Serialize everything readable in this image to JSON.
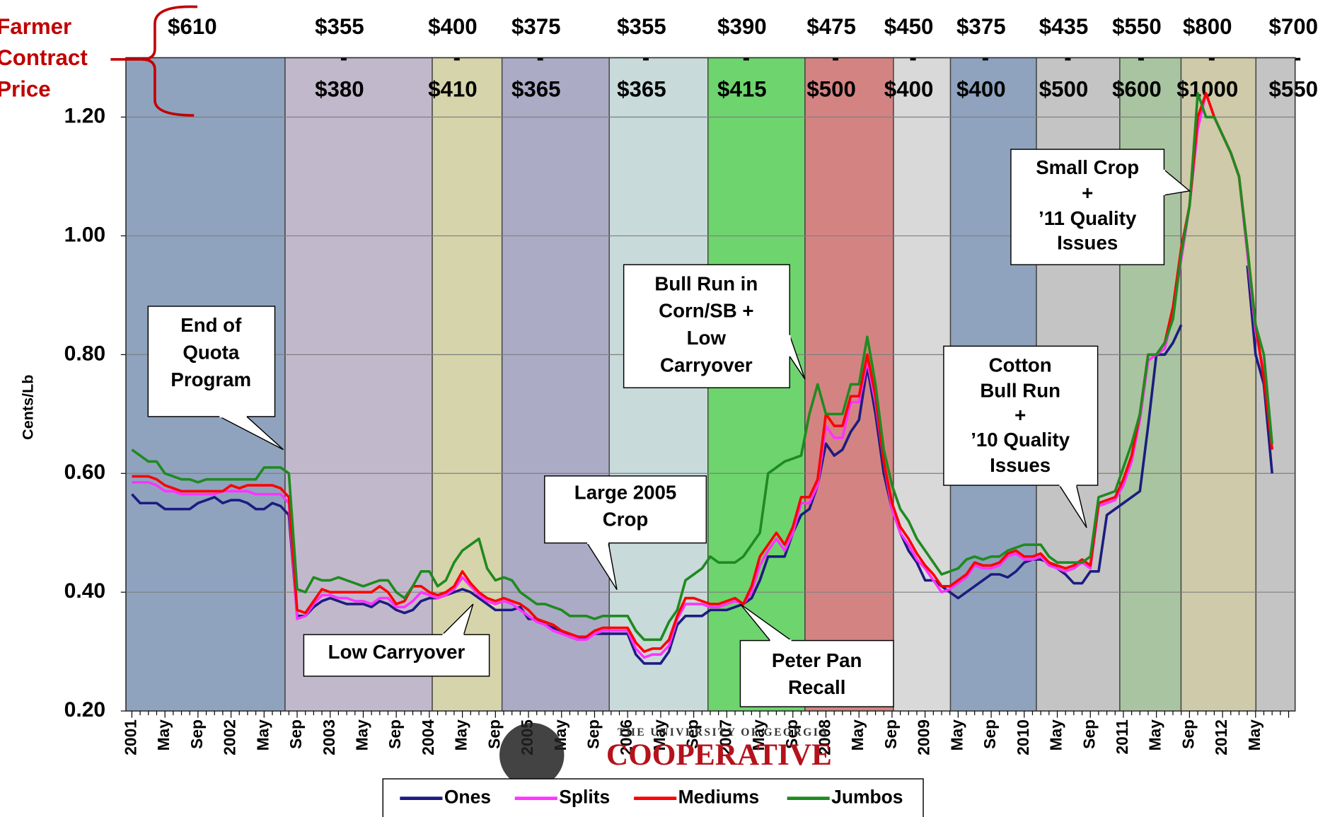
{
  "chart_data": {
    "type": "line",
    "y_label": "Cents/Lb",
    "side_label": [
      "Farmer",
      "Contract",
      "Price"
    ],
    "categories": [
      "2001",
      null,
      null,
      null,
      "May",
      null,
      null,
      null,
      "Sep",
      null,
      null,
      null,
      "2002",
      null,
      null,
      null,
      "May",
      null,
      null,
      null,
      "Sep",
      null,
      null,
      null,
      "2003",
      null,
      null,
      null,
      "May",
      null,
      null,
      null,
      "Sep",
      null,
      null,
      null,
      "2004",
      null,
      null,
      null,
      "May",
      null,
      null,
      null,
      "Sep",
      null,
      null,
      null,
      "2005",
      null,
      null,
      null,
      "May",
      null,
      null,
      null,
      "Sep",
      null,
      null,
      null,
      "2006",
      null,
      null,
      null,
      "May",
      null,
      null,
      null,
      "Sep",
      null,
      null,
      null,
      "2007",
      null,
      null,
      null,
      "May",
      null,
      null,
      null,
      "Sep",
      null,
      null,
      null,
      "2008",
      null,
      null,
      null,
      "May",
      null,
      null,
      null,
      "Sep",
      null,
      null,
      null,
      "2009",
      null,
      null,
      null,
      "May",
      null,
      null,
      null,
      "Sep",
      null,
      null,
      null,
      "2010",
      null,
      null,
      null,
      "May",
      null,
      null,
      null,
      "Sep",
      null,
      null,
      null,
      "2011",
      null,
      null,
      null,
      "May",
      null,
      null,
      null,
      "Sep",
      null,
      null,
      null,
      "2012",
      null,
      null,
      null,
      "May",
      null,
      null,
      null,
      null
    ],
    "series": [
      {
        "name": "Ones",
        "color": "#1c1c80",
        "values": [
          0.565,
          0.55,
          0.55,
          0.55,
          0.54,
          0.54,
          0.54,
          0.54,
          0.55,
          0.555,
          0.56,
          0.55,
          0.555,
          0.555,
          0.55,
          0.54,
          0.54,
          0.55,
          0.545,
          0.53,
          0.36,
          0.36,
          0.375,
          0.385,
          0.39,
          0.385,
          0.38,
          0.38,
          0.38,
          0.375,
          0.385,
          0.38,
          0.37,
          0.365,
          0.37,
          0.385,
          0.39,
          0.39,
          0.395,
          0.4,
          0.405,
          0.4,
          0.39,
          0.38,
          0.37,
          0.37,
          0.37,
          0.375,
          0.355,
          0.355,
          0.345,
          0.34,
          0.335,
          0.325,
          0.32,
          0.325,
          0.33,
          0.33,
          0.33,
          0.33,
          0.33,
          0.295,
          0.28,
          0.28,
          0.28,
          0.3,
          0.345,
          0.36,
          0.36,
          0.36,
          0.37,
          0.37,
          0.37,
          0.375,
          0.38,
          0.39,
          0.42,
          0.46,
          0.46,
          0.46,
          0.5,
          0.53,
          0.54,
          0.58,
          0.65,
          0.63,
          0.64,
          0.67,
          0.69,
          0.78,
          0.7,
          0.6,
          0.54,
          0.5,
          0.47,
          0.45,
          0.42,
          0.42,
          0.41,
          0.4,
          0.39,
          0.4,
          0.41,
          0.42,
          0.43,
          0.43,
          0.425,
          0.435,
          0.45,
          0.455,
          0.455,
          0.45,
          0.44,
          0.43,
          0.415,
          0.415,
          0.435,
          0.435,
          0.53,
          0.54,
          0.55,
          0.56,
          0.57,
          0.68,
          0.8,
          0.8,
          0.82,
          0.85,
          null,
          null,
          null,
          null,
          null,
          null,
          null,
          0.95,
          0.8,
          0.75,
          0.6,
          null,
          null
        ]
      },
      {
        "name": "Splits",
        "color": "#ff33ff",
        "values": [
          0.585,
          0.585,
          0.585,
          0.58,
          0.57,
          0.57,
          0.565,
          0.565,
          0.565,
          0.565,
          0.565,
          0.57,
          0.57,
          0.57,
          0.57,
          0.565,
          0.565,
          0.565,
          0.565,
          0.55,
          0.355,
          0.36,
          0.38,
          0.395,
          0.395,
          0.39,
          0.39,
          0.385,
          0.385,
          0.38,
          0.39,
          0.39,
          0.375,
          0.375,
          0.385,
          0.4,
          0.395,
          0.39,
          0.395,
          0.405,
          0.425,
          0.41,
          0.395,
          0.385,
          0.38,
          0.385,
          0.38,
          0.37,
          0.36,
          0.35,
          0.345,
          0.335,
          0.33,
          0.325,
          0.32,
          0.32,
          0.33,
          0.335,
          0.335,
          0.335,
          0.335,
          0.305,
          0.29,
          0.295,
          0.295,
          0.31,
          0.355,
          0.38,
          0.38,
          0.38,
          0.375,
          0.375,
          0.38,
          0.385,
          0.38,
          0.4,
          0.445,
          0.47,
          0.49,
          0.47,
          0.5,
          0.55,
          0.55,
          0.58,
          0.68,
          0.66,
          0.66,
          0.72,
          0.72,
          0.79,
          0.72,
          0.62,
          0.54,
          0.5,
          0.48,
          0.455,
          0.44,
          0.42,
          0.4,
          0.405,
          0.415,
          0.425,
          0.445,
          0.44,
          0.44,
          0.445,
          0.46,
          0.465,
          0.455,
          0.455,
          0.46,
          0.445,
          0.44,
          0.435,
          0.44,
          0.45,
          0.44,
          0.545,
          0.55,
          0.555,
          0.58,
          0.62,
          0.69,
          0.79,
          0.8,
          0.81,
          0.87,
          0.96,
          1.05,
          1.18,
          1.24,
          1.2,
          1.17,
          1.14,
          1.1,
          0.97,
          0.84,
          0.77,
          0.64,
          null,
          null
        ]
      },
      {
        "name": "Mediums",
        "color": "#ff0000",
        "values": [
          0.595,
          0.595,
          0.595,
          0.59,
          0.58,
          0.575,
          0.57,
          0.57,
          0.57,
          0.57,
          0.57,
          0.57,
          0.58,
          0.575,
          0.58,
          0.58,
          0.58,
          0.58,
          0.575,
          0.56,
          0.37,
          0.365,
          0.385,
          0.405,
          0.4,
          0.4,
          0.4,
          0.4,
          0.4,
          0.4,
          0.41,
          0.4,
          0.38,
          0.385,
          0.41,
          0.41,
          0.4,
          0.395,
          0.4,
          0.41,
          0.435,
          0.415,
          0.4,
          0.39,
          0.385,
          0.39,
          0.385,
          0.38,
          0.37,
          0.355,
          0.35,
          0.345,
          0.335,
          0.33,
          0.325,
          0.325,
          0.335,
          0.34,
          0.34,
          0.34,
          0.34,
          0.315,
          0.3,
          0.305,
          0.305,
          0.32,
          0.36,
          0.39,
          0.39,
          0.385,
          0.38,
          0.38,
          0.385,
          0.39,
          0.38,
          0.41,
          0.46,
          0.48,
          0.5,
          0.48,
          0.51,
          0.56,
          0.56,
          0.59,
          0.7,
          0.68,
          0.68,
          0.73,
          0.73,
          0.8,
          0.73,
          0.62,
          0.55,
          0.51,
          0.49,
          0.465,
          0.445,
          0.43,
          0.41,
          0.41,
          0.42,
          0.43,
          0.45,
          0.445,
          0.445,
          0.45,
          0.465,
          0.47,
          0.46,
          0.46,
          0.465,
          0.45,
          0.445,
          0.44,
          0.445,
          0.455,
          0.445,
          0.55,
          0.555,
          0.56,
          0.59,
          0.63,
          0.7,
          0.8,
          0.8,
          0.82,
          0.88,
          0.98,
          1.05,
          1.2,
          1.24,
          1.2,
          1.17,
          1.14,
          1.1,
          0.98,
          0.85,
          0.76,
          0.64,
          null,
          null
        ]
      },
      {
        "name": "Jumbos",
        "color": "#1f8a1f",
        "values": [
          0.64,
          0.63,
          0.62,
          0.62,
          0.6,
          0.595,
          0.59,
          0.59,
          0.585,
          0.59,
          0.59,
          0.59,
          0.59,
          0.59,
          0.59,
          0.59,
          0.61,
          0.61,
          0.61,
          0.6,
          0.405,
          0.4,
          0.425,
          0.42,
          0.42,
          0.425,
          0.42,
          0.415,
          0.41,
          0.415,
          0.42,
          0.42,
          0.4,
          0.39,
          0.41,
          0.435,
          0.435,
          0.41,
          0.42,
          0.45,
          0.47,
          0.48,
          0.49,
          0.44,
          0.42,
          0.425,
          0.42,
          0.4,
          0.39,
          0.38,
          0.38,
          0.375,
          0.37,
          0.36,
          0.36,
          0.36,
          0.355,
          0.36,
          0.36,
          0.36,
          0.36,
          0.335,
          0.32,
          0.32,
          0.32,
          0.35,
          0.37,
          0.42,
          0.43,
          0.44,
          0.46,
          0.45,
          0.45,
          0.45,
          0.46,
          0.48,
          0.5,
          0.6,
          0.61,
          0.62,
          0.625,
          0.63,
          0.7,
          0.75,
          0.7,
          0.7,
          0.7,
          0.75,
          0.75,
          0.83,
          0.75,
          0.64,
          0.58,
          0.54,
          0.52,
          0.49,
          0.47,
          0.45,
          0.43,
          0.435,
          0.44,
          0.455,
          0.46,
          0.455,
          0.46,
          0.46,
          0.47,
          0.475,
          0.48,
          0.48,
          0.48,
          0.46,
          0.45,
          0.45,
          0.45,
          0.45,
          0.46,
          0.56,
          0.565,
          0.57,
          0.61,
          0.65,
          0.7,
          0.8,
          0.8,
          0.82,
          0.86,
          0.97,
          1.05,
          1.24,
          1.2,
          1.2,
          1.17,
          1.14,
          1.1,
          0.98,
          0.85,
          0.8,
          0.65,
          null,
          null
        ]
      }
    ],
    "ylim": [
      0.2,
      1.3
    ],
    "yticks": [
      {
        "value": 0.2,
        "label": "0.20"
      },
      {
        "value": 0.4,
        "label": "0.40"
      },
      {
        "value": 0.6,
        "label": "0.60"
      },
      {
        "value": 0.8,
        "label": "0.80"
      },
      {
        "value": 1,
        "label": "1.00"
      },
      {
        "value": 1.2,
        "label": "1.20"
      }
    ],
    "grid": true,
    "legend": "bottom",
    "price_separator": "-",
    "price_periods": [
      {
        "from": "$610",
        "color": "#8fa3bf"
      },
      {
        "from": "$355",
        "to": "$380",
        "color": "#c2b8cc"
      },
      {
        "from": "$400",
        "to": "$410",
        "color": "#d6d4aa"
      },
      {
        "from": "$375",
        "to": "$365",
        "color": "#ababc6"
      },
      {
        "from": "$355",
        "to": "$365",
        "color": "#c8dad9"
      },
      {
        "from": "$390",
        "to": "$415",
        "color": "#6ed46e"
      },
      {
        "from": "$475",
        "to": "$500",
        "color": "#d38482"
      },
      {
        "from": "$450",
        "to": "$400",
        "color": "#d9d9d9"
      },
      {
        "from": "$375",
        "to": "$400",
        "color": "#8fa3bf"
      },
      {
        "from": "$435",
        "to": "$500",
        "color": "#c4c4c4"
      },
      {
        "from": "$550",
        "to": "$600",
        "color": "#a9c4a1"
      },
      {
        "from": "$800",
        "to": "$1000",
        "color": "#cfcaa9"
      },
      {
        "from": "$700",
        "to": "$550",
        "color": "#c4c4c4"
      }
    ],
    "annotations": [
      {
        "lines": [
          "End of",
          "Quota",
          "Program"
        ]
      },
      {
        "lines": [
          "Low Carryover"
        ]
      },
      {
        "lines": [
          "Large 2005",
          "Crop"
        ]
      },
      {
        "lines": [
          "Bull Run in",
          "Corn/SB +",
          "Low",
          "Carryover"
        ]
      },
      {
        "lines": [
          "Peter Pan",
          "Recall"
        ]
      },
      {
        "lines": [
          "Cotton",
          "Bull Run",
          "+",
          "’10 Quality",
          "Issues"
        ]
      },
      {
        "lines": [
          "Small Crop",
          "+",
          "’11 Quality",
          "Issues"
        ]
      }
    ],
    "watermark": [
      "THE UNIVERSITY OF GEORGIA",
      "COOPERATIVE"
    ]
  }
}
